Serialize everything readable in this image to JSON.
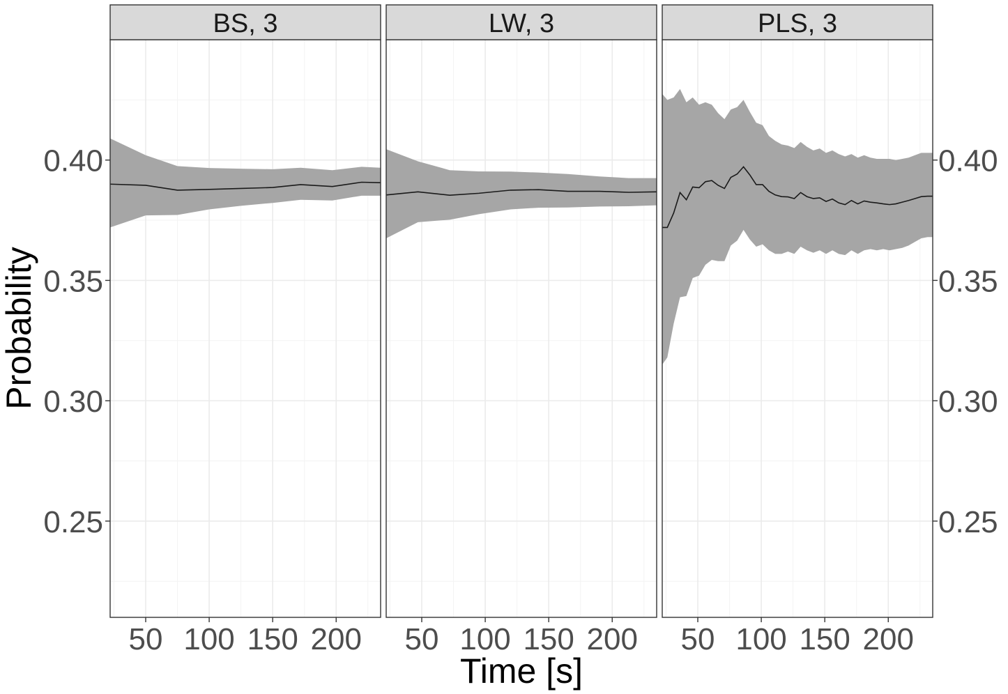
{
  "chart_data": {
    "type": "area",
    "xlabel": "Time [s]",
    "ylabel": "Probability",
    "xlim": [
      22,
      235
    ],
    "ylim": [
      0.21,
      0.45
    ],
    "x_ticks": [
      50,
      100,
      150,
      200
    ],
    "x_tick_labels": [
      "50",
      "100",
      "150",
      "200"
    ],
    "y_ticks": [
      0.25,
      0.3,
      0.35,
      0.4
    ],
    "y_tick_labels": [
      "0.25",
      "0.30",
      "0.35",
      "0.40"
    ],
    "y_axis_left_on_panel": 0,
    "y_axis_right_on_panel": 2,
    "grid": true,
    "colors": {
      "band": "#a6a6a6",
      "line": "#1a1a1a",
      "grid": "#ebebeb",
      "strip": "#d9d9d9"
    },
    "panels": [
      {
        "label": "BS, 3",
        "x": [
          22,
          50,
          75,
          100,
          125,
          150,
          172,
          197,
          220,
          235
        ],
        "mean": [
          0.39,
          0.3895,
          0.3875,
          0.3878,
          0.3882,
          0.3886,
          0.3898,
          0.389,
          0.3908,
          0.3906
        ],
        "lower": [
          0.372,
          0.377,
          0.3772,
          0.3795,
          0.381,
          0.3822,
          0.3835,
          0.3832,
          0.3852,
          0.3852
        ],
        "upper": [
          0.409,
          0.402,
          0.3975,
          0.3967,
          0.3964,
          0.3962,
          0.3968,
          0.3958,
          0.3972,
          0.3968
        ]
      },
      {
        "label": "LW, 3",
        "x": [
          22,
          47,
          72,
          95,
          120,
          142,
          165,
          190,
          213,
          235
        ],
        "mean": [
          0.3855,
          0.3868,
          0.3854,
          0.3862,
          0.3875,
          0.3877,
          0.387,
          0.387,
          0.3866,
          0.3868
        ],
        "lower": [
          0.3675,
          0.3742,
          0.3752,
          0.3775,
          0.3795,
          0.3802,
          0.3803,
          0.3807,
          0.3808,
          0.3812
        ],
        "upper": [
          0.4045,
          0.3995,
          0.3958,
          0.3953,
          0.3952,
          0.3948,
          0.3942,
          0.3932,
          0.3925,
          0.3925
        ]
      },
      {
        "label": "PLS, 3",
        "x": [
          22,
          26,
          31,
          36,
          41,
          46,
          51,
          56,
          61,
          66,
          71,
          76,
          81,
          86,
          91,
          96,
          101,
          106,
          111,
          116,
          121,
          126,
          131,
          136,
          141,
          146,
          151,
          156,
          161,
          166,
          171,
          176,
          181,
          186,
          191,
          196,
          201,
          206,
          211,
          216,
          221,
          226,
          231,
          235
        ],
        "mean": [
          0.372,
          0.372,
          0.378,
          0.3865,
          0.3835,
          0.3888,
          0.3885,
          0.391,
          0.3915,
          0.3895,
          0.3882,
          0.3928,
          0.3942,
          0.3972,
          0.3938,
          0.3898,
          0.3898,
          0.387,
          0.3855,
          0.3848,
          0.3847,
          0.384,
          0.3865,
          0.3848,
          0.384,
          0.3843,
          0.3828,
          0.3838,
          0.3822,
          0.3815,
          0.3832,
          0.3818,
          0.383,
          0.3825,
          0.3822,
          0.3818,
          0.3815,
          0.3818,
          0.3825,
          0.3832,
          0.384,
          0.3848,
          0.385,
          0.385
        ],
        "lower": [
          0.315,
          0.318,
          0.332,
          0.343,
          0.3435,
          0.351,
          0.352,
          0.3565,
          0.3585,
          0.358,
          0.358,
          0.3645,
          0.3665,
          0.371,
          0.367,
          0.364,
          0.365,
          0.3625,
          0.361,
          0.361,
          0.362,
          0.361,
          0.364,
          0.3625,
          0.3615,
          0.3625,
          0.361,
          0.3625,
          0.361,
          0.3605,
          0.3625,
          0.361,
          0.3625,
          0.363,
          0.3625,
          0.363,
          0.3625,
          0.363,
          0.3635,
          0.3645,
          0.366,
          0.3675,
          0.368,
          0.368
        ],
        "upper": [
          0.4275,
          0.425,
          0.426,
          0.4295,
          0.424,
          0.426,
          0.423,
          0.424,
          0.423,
          0.4195,
          0.417,
          0.421,
          0.422,
          0.425,
          0.42,
          0.4155,
          0.4145,
          0.41,
          0.408,
          0.4065,
          0.406,
          0.405,
          0.4075,
          0.4055,
          0.404,
          0.4048,
          0.403,
          0.404,
          0.4025,
          0.4015,
          0.4025,
          0.401,
          0.402,
          0.401,
          0.4005,
          0.4005,
          0.4005,
          0.4,
          0.4005,
          0.401,
          0.402,
          0.403,
          0.403,
          0.403
        ]
      }
    ]
  }
}
